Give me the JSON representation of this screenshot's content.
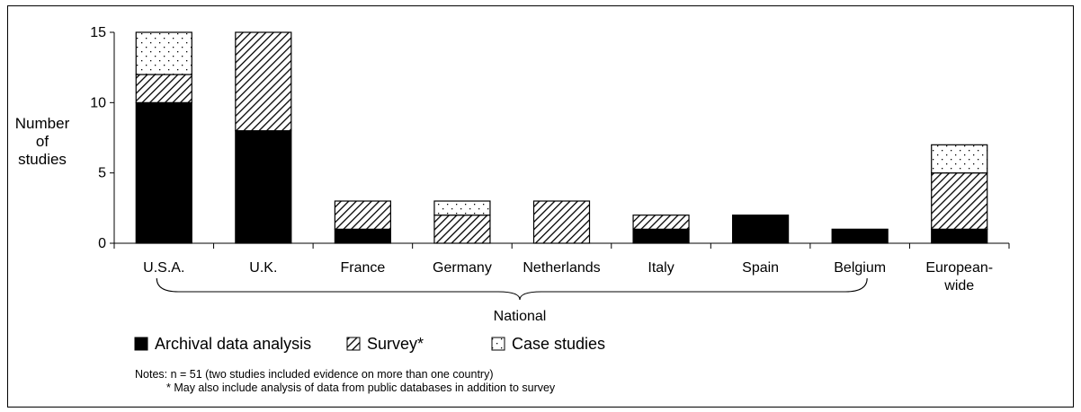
{
  "chart_data": {
    "type": "bar",
    "stacked": true,
    "ylabel": [
      "Number",
      "of",
      "studies"
    ],
    "ylim": [
      0,
      15
    ],
    "yticks": [
      0,
      5,
      10,
      15
    ],
    "grid": false,
    "categories": [
      [
        "U.S.A."
      ],
      [
        "U.K."
      ],
      [
        "France"
      ],
      [
        "Germany"
      ],
      [
        "Netherlands"
      ],
      [
        "Italy"
      ],
      [
        "Spain"
      ],
      [
        "Belgium"
      ],
      [
        "European-",
        "wide"
      ]
    ],
    "series": [
      {
        "name": "Archival data analysis",
        "pattern": "solid",
        "values": [
          10,
          8,
          1,
          0,
          0,
          1,
          2,
          1,
          1
        ]
      },
      {
        "name": "Survey*",
        "pattern": "hatch",
        "values": [
          2,
          7,
          2,
          2,
          3,
          1,
          0,
          0,
          4
        ]
      },
      {
        "name": "Case studies",
        "pattern": "dots",
        "values": [
          3,
          0,
          0,
          1,
          0,
          0,
          0,
          0,
          2
        ]
      }
    ],
    "group_label": "National",
    "group_range": [
      0,
      7
    ],
    "legend_position": "bottom-left",
    "notes": [
      "Notes:  n = 51 (two studies included evidence on more than one country)",
      "* May also include analysis of data from public databases in addition to survey"
    ]
  },
  "colors": {
    "bar_fill": "#000000",
    "background": "#ffffff"
  }
}
